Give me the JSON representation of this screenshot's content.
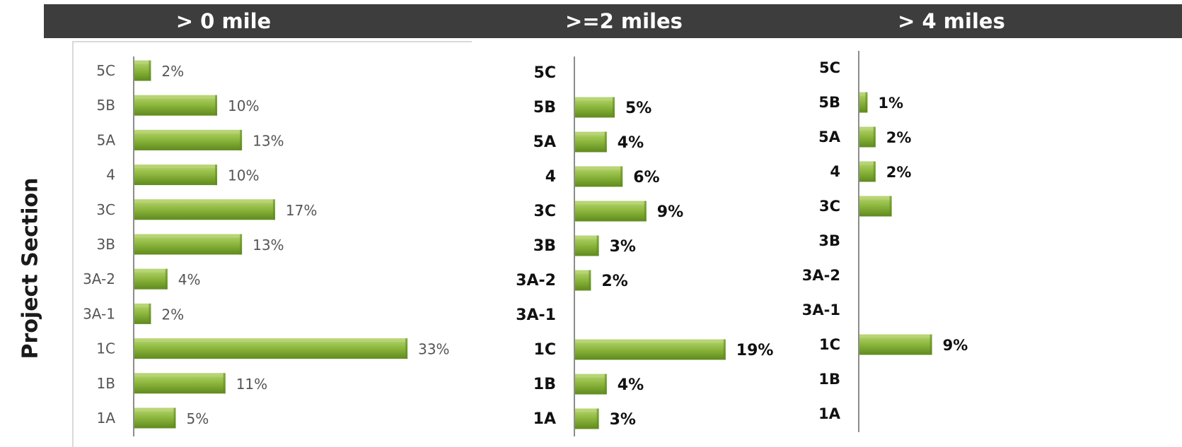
{
  "y_axis_title": "Project Section",
  "colors": {
    "header_bg": "#3d3d3d",
    "bar_main": "#8fb93f",
    "bar_light": "#b9d677",
    "bar_dark": "#5f8a1e",
    "axis": "#8c8c8c"
  },
  "chart_data": [
    {
      "type": "bar",
      "orientation": "horizontal",
      "title": "> 0 mile",
      "categories": [
        "5C",
        "5B",
        "5A",
        "4",
        "3C",
        "3B",
        "3A-2",
        "3A-1",
        "1C",
        "1B",
        "1A"
      ],
      "values": [
        2,
        10,
        13,
        10,
        17,
        13,
        4,
        2,
        33,
        11,
        5
      ],
      "labels": [
        "2%",
        "10%",
        "13%",
        "10%",
        "17%",
        "13%",
        "4%",
        "2%",
        "33%",
        "11%",
        "5%"
      ],
      "unit": "%"
    },
    {
      "type": "bar",
      "orientation": "horizontal",
      "title": ">=2 miles",
      "categories": [
        "5C",
        "5B",
        "5A",
        "4",
        "3C",
        "3B",
        "3A-2",
        "3A-1",
        "1C",
        "1B",
        "1A"
      ],
      "values": [
        0,
        5,
        4,
        6,
        9,
        3,
        2,
        0,
        19,
        4,
        3
      ],
      "labels": [
        "",
        "5%",
        "4%",
        "6%",
        "9%",
        "3%",
        "2%",
        "",
        "19%",
        "4%",
        "3%"
      ],
      "unit": "%"
    },
    {
      "type": "bar",
      "orientation": "horizontal",
      "title": "> 4 miles",
      "categories": [
        "5C",
        "5B",
        "5A",
        "4",
        "3C",
        "3B",
        "3A-2",
        "3A-1",
        "1C",
        "1B",
        "1A"
      ],
      "values": [
        0,
        1,
        2,
        2,
        4,
        0,
        0,
        0,
        9,
        0,
        0
      ],
      "labels": [
        "",
        "1%",
        "2%",
        "2%",
        "",
        "",
        "",
        "",
        "9%",
        "",
        ""
      ],
      "unit": "%"
    }
  ]
}
